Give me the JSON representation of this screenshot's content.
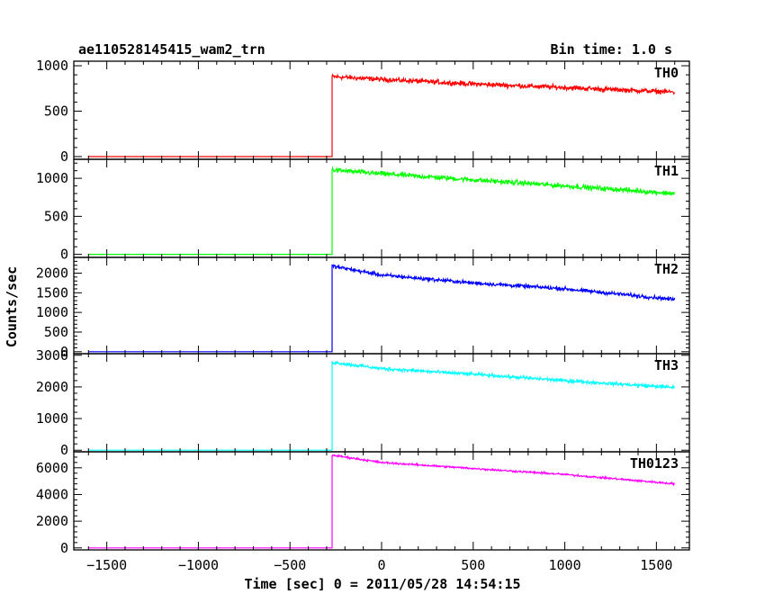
{
  "chart_data": {
    "type": "line",
    "title": "ae110528145415_wam2_trn",
    "subtitle": "Bin time: 1.0 s",
    "xlabel": "Time [sec] 0 = 2011/05/28 14:54:15",
    "ylabel": "Counts/sec",
    "xlim": [
      -1680,
      1680
    ],
    "x_ticks": [
      -1500,
      -1000,
      -500,
      0,
      500,
      1000,
      1500
    ],
    "x_tick_labels": [
      "−1500",
      "−1000",
      "−500",
      "0",
      "500",
      "1000",
      "1500"
    ],
    "step_time": -270,
    "x_end": 1600,
    "panels": [
      {
        "name": "TH0",
        "color": "#ff0000",
        "ylim": [
          -30,
          1050
        ],
        "y_ticks": [
          0,
          500,
          1000
        ],
        "y_tick_labels": [
          "0",
          "500",
          "1000"
        ],
        "pre_level": 0,
        "curve_x": [
          -270,
          0,
          500,
          1000,
          1600
        ],
        "curve_y": [
          880,
          850,
          800,
          760,
          710
        ],
        "noise": 45
      },
      {
        "name": "TH1",
        "color": "#00ff00",
        "ylim": [
          -40,
          1250
        ],
        "y_ticks": [
          0,
          500,
          1000
        ],
        "y_tick_labels": [
          "0",
          "500",
          "1000"
        ],
        "pre_level": 0,
        "curve_x": [
          -270,
          0,
          500,
          1000,
          1600
        ],
        "curve_y": [
          1110,
          1060,
          980,
          900,
          800
        ],
        "noise": 55
      },
      {
        "name": "TH2",
        "color": "#0000ff",
        "ylim": [
          -50,
          2400
        ],
        "y_ticks": [
          0,
          500,
          1000,
          1500,
          2000
        ],
        "y_tick_labels": [
          "0",
          "500",
          "1000",
          "1500",
          "2000"
        ],
        "pre_level": 0,
        "curve_x": [
          -270,
          0,
          500,
          1000,
          1600
        ],
        "curve_y": [
          2180,
          1950,
          1750,
          1600,
          1330
        ],
        "noise": 80
      },
      {
        "name": "TH3",
        "color": "#00ffff",
        "ylim": [
          -50,
          3050
        ],
        "y_ticks": [
          0,
          1000,
          2000,
          3000
        ],
        "y_tick_labels": [
          "0",
          "1000",
          "2000",
          "3000"
        ],
        "pre_level": 0,
        "curve_x": [
          -270,
          0,
          500,
          1000,
          1600
        ],
        "curve_y": [
          2780,
          2580,
          2400,
          2200,
          1980
        ],
        "noise": 90
      },
      {
        "name": "TH0123",
        "color": "#ff00ff",
        "ylim": [
          -150,
          7200
        ],
        "y_ticks": [
          0,
          2000,
          4000,
          6000
        ],
        "y_tick_labels": [
          "0",
          "2000",
          "4000",
          "6000"
        ],
        "pre_level": 0,
        "curve_x": [
          -270,
          0,
          500,
          1000,
          1600
        ],
        "curve_y": [
          6950,
          6400,
          5950,
          5500,
          4800
        ],
        "noise": 120
      }
    ]
  }
}
